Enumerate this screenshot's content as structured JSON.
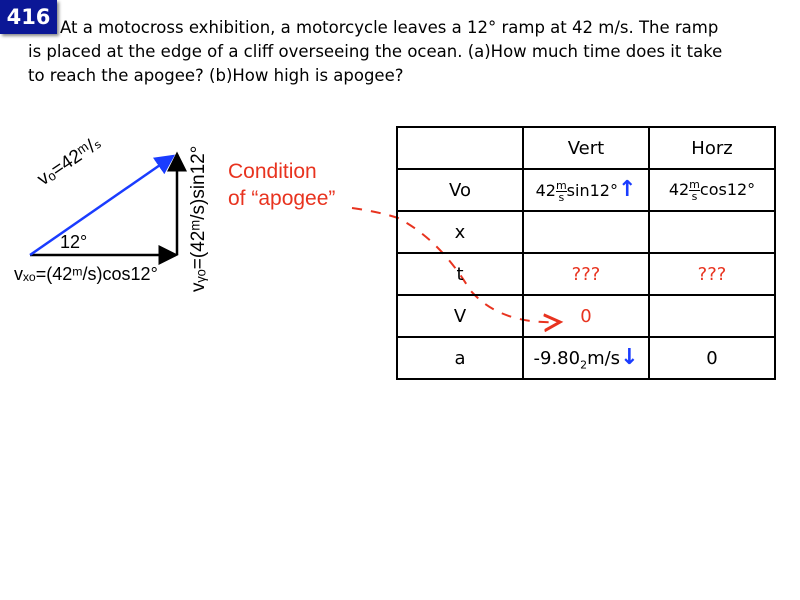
{
  "badge": "416",
  "question": {
    "line1": "At a motocross exhibition, a motorcycle leaves a 12° ramp at 42 m/s. The ramp",
    "line2": "is placed at the edge of a cliff overseeing the ocean. (a)How much time does it take",
    "line3": "to reach the apogee? (b)How high is apogee?"
  },
  "diagram": {
    "v0_label": "vₒ=42ᵐ/ₛ",
    "angle_label": "12°",
    "vx_label": "vₓₒ=(42ᵐ/s)cos12°",
    "vy_label": "vᵧₒ=(42ᵐ/s)sin12°"
  },
  "annotation": {
    "line1": "Condition",
    "line2": "of “apogee”"
  },
  "table": {
    "headers": [
      "",
      "Vert",
      "Horz"
    ],
    "rows": [
      {
        "label": "Vo",
        "vert_num": "42",
        "vert_unit_top": "m",
        "vert_unit_bottom": "s",
        "vert_fn": "sin12°",
        "horz_num": "42",
        "horz_unit_top": "m",
        "horz_unit_bottom": "s",
        "horz_fn": "cos12°"
      },
      {
        "label": "x",
        "vert": "",
        "horz": ""
      },
      {
        "label": "t",
        "vert": "???",
        "horz": "???"
      },
      {
        "label": "V",
        "vert": "0",
        "horz": ""
      },
      {
        "label": "a",
        "vert_a": "-9.80",
        "vert_sub": "2",
        "vert_b": "m/s",
        "horz": "0"
      }
    ]
  },
  "colors": {
    "badge": "#0b1796",
    "red": "#e8331f",
    "blue": "#1a3cff"
  }
}
